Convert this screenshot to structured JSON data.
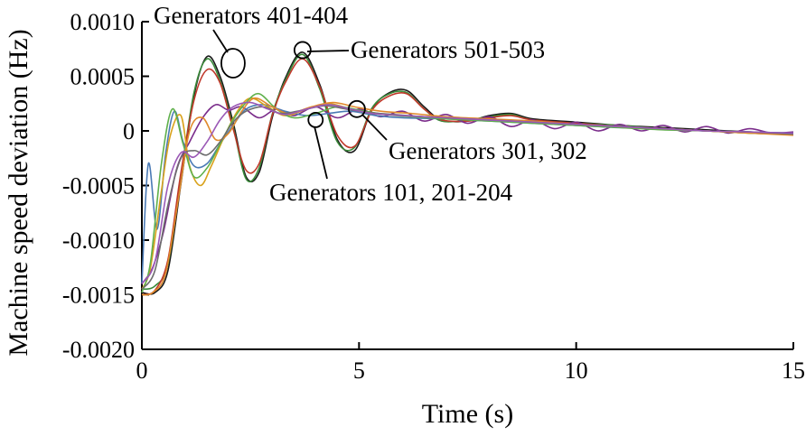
{
  "chart_data": {
    "type": "line",
    "title": "",
    "xlabel": "Time (s)",
    "ylabel": "Machine speed deviation (Hz)",
    "xlim": [
      0,
      15
    ],
    "ylim": [
      -0.002,
      0.001
    ],
    "grid": false,
    "legend": "none",
    "x_ticks": [
      {
        "value": 0,
        "label": "0"
      },
      {
        "value": 5,
        "label": "5"
      },
      {
        "value": 10,
        "label": "10"
      },
      {
        "value": 15,
        "label": "15"
      }
    ],
    "y_ticks": [
      {
        "value": 0.001,
        "label": "0.0010"
      },
      {
        "value": 0.0005,
        "label": "0.0005"
      },
      {
        "value": 0,
        "label": "0"
      },
      {
        "value": -0.0005,
        "label": "-0.0005"
      },
      {
        "value": -0.001,
        "label": "-0.0010"
      },
      {
        "value": -0.0015,
        "label": "-0.0015"
      },
      {
        "value": -0.002,
        "label": "-0.0020"
      }
    ],
    "series": [
      {
        "color": "#1a1a1a",
        "x": [
          0,
          0.3,
          0.6,
          0.9,
          1.2,
          1.5,
          1.8,
          2.1,
          2.4,
          2.7,
          3.0,
          3.3,
          3.7,
          4.1,
          4.5,
          4.9,
          5.3,
          5.7,
          6.1,
          6.5,
          6.9,
          7.5,
          8.0,
          8.5,
          9,
          10,
          11,
          12,
          13,
          14,
          15
        ],
        "y": [
          -0.00148,
          -0.00148,
          -0.00128,
          -0.00048,
          0.00032,
          0.00068,
          0.0005,
          8e-05,
          -0.00042,
          -0.00038,
          0.00012,
          0.00048,
          0.00072,
          0.00042,
          -8e-05,
          -0.00018,
          0.0002,
          0.00035,
          0.00037,
          0.00022,
          0.0001,
          9e-05,
          0.00014,
          0.00016,
          0.00011,
          8e-05,
          5e-05,
          3e-05,
          1e-05,
          -1e-05,
          -3e-05
        ]
      },
      {
        "color": "#3a8a3a",
        "x": [
          0,
          0.3,
          0.6,
          0.9,
          1.2,
          1.5,
          1.8,
          2.1,
          2.4,
          2.7,
          3.0,
          3.3,
          3.7,
          4.1,
          4.5,
          4.9,
          5.3,
          5.7,
          6.1,
          6.5,
          6.9,
          7.5,
          8.0,
          8.5,
          9,
          10,
          11,
          12,
          13,
          14,
          15
        ],
        "y": [
          -0.00145,
          -0.00142,
          -0.00122,
          -0.00042,
          0.00035,
          0.00066,
          0.00046,
          4e-05,
          -0.00044,
          -0.00034,
          0.00015,
          0.00046,
          0.0007,
          0.00038,
          -0.0001,
          -0.00015,
          0.00021,
          0.00034,
          0.00035,
          0.0002,
          9e-05,
          0.0001,
          0.00013,
          0.00015,
          0.0001,
          7e-05,
          5e-05,
          2e-05,
          0.0,
          -1e-05,
          -2e-05
        ]
      },
      {
        "color": "#c0392b",
        "x": [
          0,
          0.3,
          0.6,
          0.9,
          1.2,
          1.5,
          1.8,
          2.1,
          2.4,
          2.7,
          3.0,
          3.3,
          3.7,
          4.1,
          4.5,
          4.9,
          5.3,
          5.7,
          6.1,
          6.5,
          6.9,
          7.5,
          8.0,
          8.5,
          9,
          10,
          11,
          12,
          13,
          14,
          15
        ],
        "y": [
          -0.0015,
          -0.00146,
          -0.00118,
          -0.00038,
          0.00028,
          0.00056,
          0.00044,
          2e-05,
          -0.00036,
          -0.0003,
          0.00014,
          0.00044,
          0.00066,
          0.0004,
          -4e-05,
          -0.00014,
          0.00019,
          0.00032,
          0.00034,
          0.0002,
          0.0001,
          9e-05,
          0.00012,
          0.00014,
          0.0001,
          7e-05,
          4e-05,
          2e-05,
          0.0,
          -2e-05,
          -3e-05
        ]
      },
      {
        "color": "#7b2d8b",
        "x": [
          0,
          0.25,
          0.5,
          0.8,
          1.1,
          1.4,
          1.7,
          2.0,
          2.3,
          2.7,
          3.1,
          3.5,
          4.0,
          4.5,
          5.0,
          5.5,
          6.0,
          6.5,
          7.0,
          7.5,
          8.0,
          8.5,
          9.0,
          9.5,
          10,
          10.5,
          11,
          11.5,
          12,
          12.5,
          13,
          13.5,
          14,
          14.5,
          15
        ],
        "y": [
          -0.0014,
          -0.00125,
          -0.00092,
          -0.00035,
          -0.0001,
          0.00012,
          0.00024,
          0.00019,
          0.00022,
          0.00012,
          0.0002,
          0.00014,
          0.00022,
          0.00012,
          0.0002,
          0.00013,
          0.00018,
          9e-05,
          0.00015,
          7e-05,
          0.00013,
          4e-05,
          0.0001,
          2e-05,
          8e-05,
          0.0,
          6e-05,
          0.0,
          5e-05,
          -1e-05,
          4e-05,
          -2e-05,
          2e-05,
          -2e-05,
          -1e-05
        ]
      },
      {
        "color": "#4a7ab5",
        "x": [
          0,
          0.15,
          0.35,
          0.55,
          0.75,
          0.95,
          1.2,
          1.5,
          1.8,
          2.1,
          2.4,
          2.8,
          3.3,
          3.8,
          4.3,
          4.8,
          5.4,
          6.0,
          7,
          8,
          9,
          10,
          11,
          12,
          13,
          14,
          15
        ],
        "y": [
          -0.0014,
          -0.0003,
          -0.0009,
          -0.0002,
          0.00018,
          -0.0001,
          -0.00032,
          -0.0003,
          -0.00012,
          5e-05,
          0.0002,
          0.00024,
          0.00018,
          0.00014,
          0.00016,
          0.00018,
          0.00014,
          0.00012,
          0.00011,
          9e-05,
          7e-05,
          5e-05,
          3e-05,
          2e-05,
          0.0,
          -1e-05,
          -2e-05
        ]
      },
      {
        "color": "#d9a21b",
        "x": [
          0,
          0.2,
          0.45,
          0.65,
          0.9,
          1.1,
          1.35,
          1.6,
          1.9,
          2.2,
          2.5,
          2.9,
          3.3,
          3.8,
          4.3,
          4.8,
          5.3,
          6.0,
          7,
          8,
          9,
          10,
          11,
          12,
          13,
          14,
          15
        ],
        "y": [
          -0.00145,
          -0.00125,
          -0.00055,
          -5e-05,
          0.00014,
          -0.00032,
          -0.0005,
          -0.00032,
          -5e-05,
          0.00018,
          0.0003,
          0.00022,
          0.00014,
          0.0002,
          0.00025,
          0.0002,
          0.00016,
          0.00014,
          0.00012,
          0.0001,
          8e-05,
          6e-05,
          4e-05,
          2e-05,
          0.0,
          -2e-05,
          -3e-05
        ]
      },
      {
        "color": "#5fb04b",
        "x": [
          0,
          0.2,
          0.45,
          0.7,
          0.95,
          1.2,
          1.5,
          1.8,
          2.1,
          2.4,
          2.7,
          3.1,
          3.5,
          4.0,
          4.5,
          5.0,
          5.6,
          6.2,
          7,
          8,
          9,
          10,
          11,
          12,
          13,
          14,
          15
        ],
        "y": [
          -0.00148,
          -0.0012,
          -0.0003,
          0.0002,
          -0.00012,
          -0.00042,
          -0.00034,
          -0.00012,
          0.0001,
          0.00026,
          0.00034,
          0.0002,
          0.00012,
          0.00016,
          0.00022,
          0.00019,
          0.00015,
          0.00013,
          0.00011,
          9e-05,
          7e-05,
          5e-05,
          3e-05,
          1e-05,
          0.0,
          -2e-05,
          -3e-05
        ]
      },
      {
        "color": "#e08a2c",
        "x": [
          0,
          0.25,
          0.55,
          0.85,
          1.1,
          1.4,
          1.7,
          2.0,
          2.3,
          2.6,
          3.0,
          3.4,
          3.9,
          4.4,
          4.9,
          5.5,
          6.2,
          7,
          8,
          9,
          10,
          11,
          12,
          13,
          14,
          15
        ],
        "y": [
          -0.0015,
          -0.00148,
          -0.0013,
          -0.0006,
          0.0,
          0.00012,
          -8e-05,
          -2e-05,
          0.00018,
          0.0003,
          0.00022,
          0.00016,
          0.00022,
          0.00026,
          0.00022,
          0.00018,
          0.00016,
          0.00013,
          0.00011,
          9e-05,
          6e-05,
          4e-05,
          2e-05,
          0.0,
          -2e-05,
          -4e-05
        ]
      },
      {
        "color": "#6d6d6d",
        "x": [
          0,
          0.3,
          0.6,
          0.9,
          1.2,
          1.5,
          1.8,
          2.1,
          2.4,
          2.8,
          3.2,
          3.7,
          4.2,
          4.7,
          5.2,
          5.8,
          6.5,
          7.5,
          8.5,
          10,
          11,
          12,
          13,
          14,
          15
        ],
        "y": [
          -0.00145,
          -0.00128,
          -0.00068,
          -0.00025,
          -0.00018,
          -0.00022,
          -0.0001,
          8e-05,
          0.00018,
          0.00022,
          0.00016,
          0.00019,
          0.00023,
          0.0002,
          0.00017,
          0.00015,
          0.00013,
          0.00011,
          9e-05,
          6e-05,
          4e-05,
          2e-05,
          0.0,
          -1e-05,
          -3e-05
        ]
      },
      {
        "color": "#9b59b6",
        "x": [
          0,
          0.3,
          0.6,
          0.9,
          1.2,
          1.5,
          1.8,
          2.1,
          2.5,
          2.9,
          3.3,
          3.8,
          4.3,
          4.8,
          5.3,
          6.0,
          7,
          8,
          9,
          10,
          11,
          12,
          13,
          14,
          15
        ],
        "y": [
          -0.0014,
          -0.0012,
          -0.0005,
          -0.0002,
          -0.00024,
          -0.0001,
          0.0001,
          0.00022,
          0.00026,
          0.0002,
          0.00015,
          0.0002,
          0.00024,
          0.0002,
          0.00016,
          0.00014,
          0.00012,
          0.0001,
          8e-05,
          6e-05,
          4e-05,
          2e-05,
          0.0,
          -1e-05,
          -2e-05
        ]
      }
    ],
    "annotations": [
      {
        "text": "Generators 401-404",
        "x": 2.1,
        "y": 0.00062
      },
      {
        "text": "Generators 501-503",
        "x": 3.7,
        "y": 0.00074
      },
      {
        "text": "Generators 301, 302",
        "x": 4.95,
        "y": 0.0002
      },
      {
        "text": "Generators 101, 201-204",
        "x": 4.0,
        "y": 0.0001
      }
    ]
  }
}
